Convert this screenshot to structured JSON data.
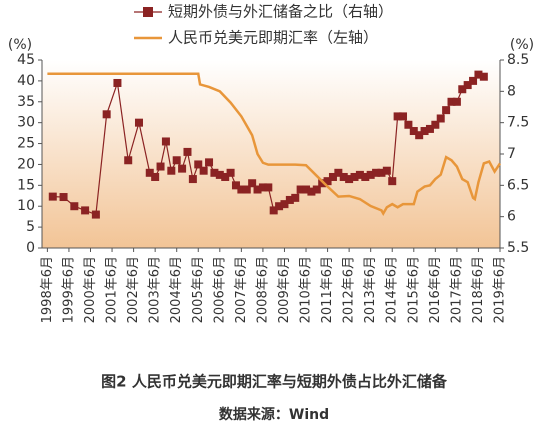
{
  "chart_data": {
    "type": "line",
    "title": "图2 人民币兑美元即期汇率与短期外债占比外汇储备",
    "source": "数据来源：Wind",
    "y_label": "(%)",
    "y2_label": "(%)",
    "ylim": [
      0,
      45
    ],
    "yticks": [
      0,
      5,
      10,
      15,
      20,
      25,
      30,
      35,
      40,
      45
    ],
    "y2lim": [
      5.5,
      8.5
    ],
    "y2ticks": [
      5.5,
      6,
      6.5,
      7,
      7.5,
      8,
      8.5
    ],
    "xticks": [
      {
        "value": "1998-06",
        "label": "1998年6月"
      },
      {
        "value": "1999-06",
        "label": "1999年6月"
      },
      {
        "value": "2000-06",
        "label": "2000年6月"
      },
      {
        "value": "2001-06",
        "label": "2001年6月"
      },
      {
        "value": "2002-06",
        "label": "2002年6月"
      },
      {
        "value": "2003-06",
        "label": "2003年6月"
      },
      {
        "value": "2004-06",
        "label": "2004年6月"
      },
      {
        "value": "2005-06",
        "label": "2005年6月"
      },
      {
        "value": "2006-06",
        "label": "2006年6月"
      },
      {
        "value": "2007-06",
        "label": "2007年6月"
      },
      {
        "value": "2008-06",
        "label": "2008年6月"
      },
      {
        "value": "2009-06",
        "label": "2009年6月"
      },
      {
        "value": "2010-06",
        "label": "2010年6月"
      },
      {
        "value": "2011-06",
        "label": "2011年6月"
      },
      {
        "value": "2012-06",
        "label": "2012年6月"
      },
      {
        "value": "2013-06",
        "label": "2013年6月"
      },
      {
        "value": "2014-06",
        "label": "2014年6月"
      },
      {
        "value": "2015-06",
        "label": "2015年6月"
      },
      {
        "value": "2016-06",
        "label": "2016年6月"
      },
      {
        "value": "2017-06",
        "label": "2017年6月"
      },
      {
        "value": "2018-06",
        "label": "2018年6月"
      },
      {
        "value": "2019-06",
        "label": "2019年6月"
      }
    ],
    "series": [
      {
        "name": "短期外债与外汇储备之比（右轴）",
        "color": "#8b2323",
        "marker": "square",
        "x": [
          "1998-09",
          "1999-03",
          "1999-09",
          "2000-03",
          "2000-09",
          "2001-03",
          "2001-09",
          "2002-03",
          "2002-09",
          "2003-03",
          "2003-06",
          "2003-09",
          "2003-12",
          "2004-03",
          "2004-06",
          "2004-09",
          "2004-12",
          "2005-03",
          "2005-06",
          "2005-09",
          "2005-12",
          "2006-03",
          "2006-06",
          "2006-09",
          "2006-12",
          "2007-03",
          "2007-06",
          "2007-09",
          "2007-12",
          "2008-03",
          "2008-06",
          "2008-09",
          "2008-12",
          "2009-03",
          "2009-06",
          "2009-09",
          "2009-12",
          "2010-03",
          "2010-06",
          "2010-09",
          "2010-12",
          "2011-03",
          "2011-06",
          "2011-09",
          "2011-12",
          "2012-03",
          "2012-06",
          "2012-09",
          "2012-12",
          "2013-03",
          "2013-06",
          "2013-09",
          "2013-12",
          "2014-03",
          "2014-06",
          "2014-09",
          "2014-12",
          "2015-03",
          "2015-06",
          "2015-09",
          "2015-12",
          "2016-03",
          "2016-06",
          "2016-09",
          "2016-12",
          "2017-03",
          "2017-06",
          "2017-09",
          "2017-12",
          "2018-03",
          "2018-06",
          "2018-09"
        ],
        "values": [
          12.3,
          12.2,
          10,
          9,
          8,
          32,
          39.5,
          21,
          30,
          18,
          17,
          19.5,
          25.5,
          18.5,
          21,
          19,
          23,
          16.5,
          20,
          18.5,
          20.5,
          18,
          17.5,
          17,
          18,
          15,
          14,
          14,
          15.5,
          14,
          14.5,
          14.5,
          9,
          10,
          10.5,
          11.5,
          12,
          14,
          14,
          13.5,
          14,
          15.5,
          16,
          17,
          18,
          17,
          16.5,
          17,
          17.5,
          17,
          17.5,
          18,
          18,
          18.5,
          16,
          31.5,
          31.5,
          29.5,
          28,
          27,
          28,
          28.5,
          29.5,
          31,
          33,
          35,
          35,
          38,
          39,
          40,
          41.5,
          41
        ]
      },
      {
        "name": "人民币兑美元即期汇率（左轴）",
        "color": "#e8963a",
        "axis": "y2",
        "x": [
          "1998-06",
          "2005-06",
          "2005-07",
          "2005-12",
          "2006-06",
          "2006-12",
          "2007-06",
          "2007-12",
          "2008-03",
          "2008-06",
          "2008-09",
          "2009-12",
          "2010-06",
          "2010-12",
          "2011-06",
          "2011-12",
          "2012-06",
          "2012-12",
          "2013-06",
          "2013-12",
          "2014-01",
          "2014-03",
          "2014-06",
          "2014-09",
          "2014-12",
          "2015-06",
          "2015-08",
          "2015-12",
          "2016-03",
          "2016-06",
          "2016-09",
          "2016-12",
          "2017-03",
          "2017-06",
          "2017-09",
          "2017-12",
          "2018-03",
          "2018-04",
          "2018-06",
          "2018-09",
          "2018-12",
          "2019-03",
          "2019-06"
        ],
        "values": [
          8.28,
          8.28,
          8.11,
          8.07,
          8.0,
          7.82,
          7.6,
          7.3,
          7.0,
          6.86,
          6.83,
          6.83,
          6.82,
          6.65,
          6.48,
          6.32,
          6.33,
          6.28,
          6.17,
          6.1,
          6.05,
          6.15,
          6.2,
          6.15,
          6.2,
          6.2,
          6.4,
          6.48,
          6.5,
          6.6,
          6.67,
          6.95,
          6.9,
          6.8,
          6.6,
          6.55,
          6.3,
          6.28,
          6.55,
          6.85,
          6.88,
          6.72,
          6.85
        ]
      }
    ]
  }
}
